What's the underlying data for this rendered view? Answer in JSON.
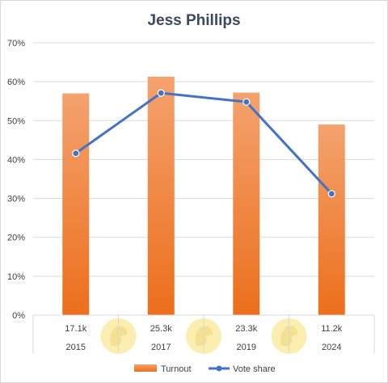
{
  "chart_data": {
    "type": "bar",
    "title": "Jess Phillips",
    "categories": [
      "2015",
      "2017",
      "2019",
      "2024"
    ],
    "table_row_labels": [
      "17.1k",
      "25.3k",
      "23.3k",
      "11.2k"
    ],
    "ylim": [
      0,
      70
    ],
    "yticks": [
      "0%",
      "10%",
      "20%",
      "30%",
      "40%",
      "50%",
      "60%",
      "70%"
    ],
    "ytick_values": [
      0,
      10,
      20,
      30,
      40,
      50,
      60,
      70
    ],
    "grid": true,
    "legend_position": "bottom",
    "series": [
      {
        "name": "Turnout",
        "type": "bar",
        "color": "#ed7d31",
        "values": [
          57,
          61.3,
          57.2,
          49
        ]
      },
      {
        "name": "Vote share",
        "type": "line",
        "color": "#4472c4",
        "values": [
          41.6,
          57.1,
          54.8,
          31.2
        ]
      }
    ],
    "colors": {
      "bar_top": "#f4a26e",
      "bar_bottom": "#ec6f1c",
      "grid": "#d9d9d9",
      "watermark": "#fbeeb0"
    },
    "watermark_icon": "eagle-logo-icon"
  }
}
